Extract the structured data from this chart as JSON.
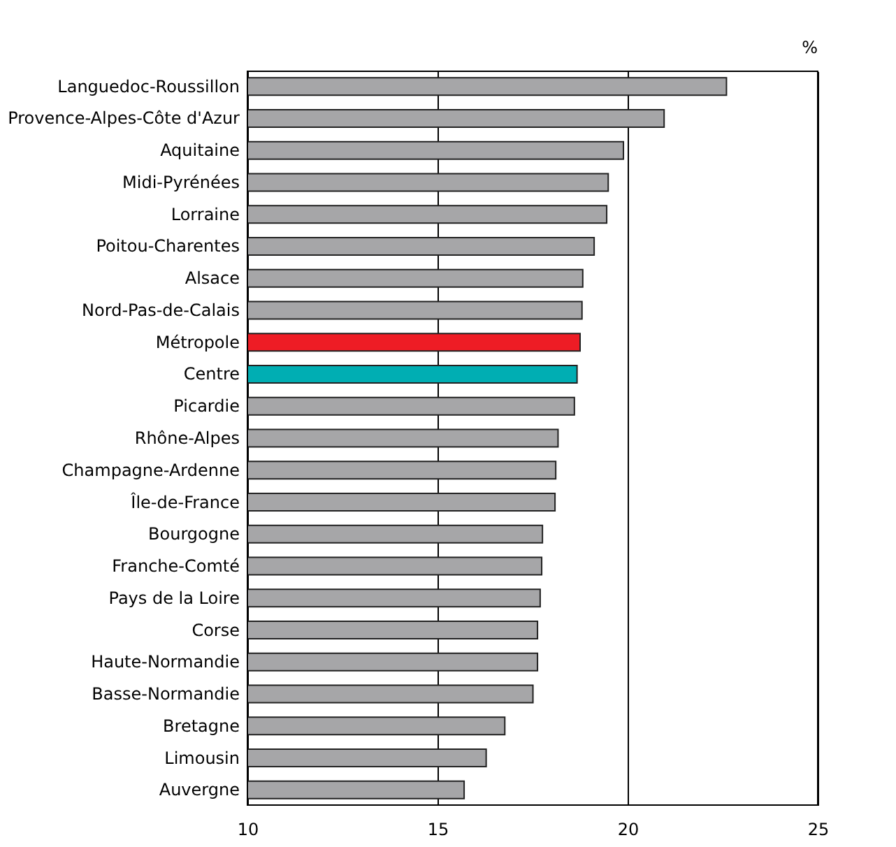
{
  "chart_data": {
    "type": "bar",
    "orientation": "horizontal",
    "xlabel": "%",
    "categories": [
      "Languedoc-Roussillon",
      "Provence-Alpes-Côte d'Azur",
      "Aquitaine",
      "Midi-Pyrénées",
      "Lorraine",
      "Poitou-Charentes",
      "Alsace",
      "Nord-Pas-de-Calais",
      "Métropole",
      "Centre",
      "Picardie",
      "Rhône-Alpes",
      "Champagne-Ardenne",
      "Île-de-France",
      "Bourgogne",
      "Franche-Comté",
      "Pays de la Loire",
      "Corse",
      "Haute-Normandie",
      "Basse-Normandie",
      "Bretagne",
      "Limousin",
      "Auvergne"
    ],
    "values": [
      22.6,
      20.96,
      19.89,
      19.49,
      19.45,
      19.12,
      18.82,
      18.8,
      18.75,
      18.67,
      18.6,
      18.17,
      18.11,
      18.09,
      17.76,
      17.74,
      17.7,
      17.63,
      17.63,
      17.51,
      16.77,
      16.28,
      15.7
    ],
    "colors": [
      "#a6a6a8",
      "#a6a6a8",
      "#a6a6a8",
      "#a6a6a8",
      "#a6a6a8",
      "#a6a6a8",
      "#a6a6a8",
      "#a6a6a8",
      "#ee1c25",
      "#00aeb3",
      "#a6a6a8",
      "#a6a6a8",
      "#a6a6a8",
      "#a6a6a8",
      "#a6a6a8",
      "#a6a6a8",
      "#a6a6a8",
      "#a6a6a8",
      "#a6a6a8",
      "#a6a6a8",
      "#a6a6a8",
      "#a6a6a8",
      "#a6a6a8"
    ],
    "xlim": [
      10,
      25
    ],
    "xticks": [
      10,
      15,
      20,
      25
    ],
    "grid": "x"
  }
}
